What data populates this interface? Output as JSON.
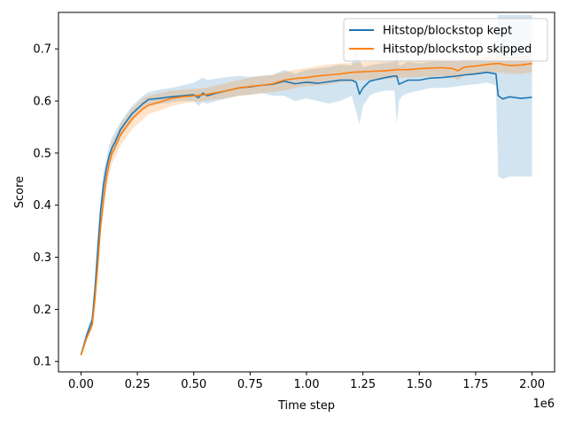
{
  "chart_data": {
    "type": "line",
    "xlabel": "Time step",
    "ylabel": "Score",
    "x_offset_label": "1e6",
    "x_tick_labels": [
      "0.00",
      "0.25",
      "0.50",
      "0.75",
      "1.00",
      "1.25",
      "1.50",
      "1.75",
      "2.00"
    ],
    "x_ticks": [
      0,
      250000,
      500000,
      750000,
      1000000,
      1250000,
      1500000,
      1750000,
      2000000
    ],
    "y_tick_labels": [
      "0.1",
      "0.2",
      "0.3",
      "0.4",
      "0.5",
      "0.6",
      "0.7"
    ],
    "y_ticks": [
      0.1,
      0.2,
      0.3,
      0.4,
      0.5,
      0.6,
      0.7
    ],
    "xlim": [
      -100000,
      2100000
    ],
    "ylim": [
      0.08,
      0.77
    ],
    "grid": false,
    "legend_position": "top-right",
    "series": [
      {
        "name": "Hitstop/blockstop kept",
        "color": "#1f77b4",
        "band_color": "#1f77b4",
        "x": [
          0,
          25000,
          50000,
          62000,
          75000,
          87000,
          100000,
          112000,
          125000,
          137000,
          150000,
          175000,
          200000,
          225000,
          250000,
          275000,
          300000,
          350000,
          400000,
          450000,
          500000,
          520000,
          540000,
          560000,
          600000,
          650000,
          700000,
          750000,
          800000,
          850000,
          900000,
          950000,
          1000000,
          1050000,
          1100000,
          1150000,
          1200000,
          1220000,
          1235000,
          1250000,
          1280000,
          1300000,
          1350000,
          1390000,
          1400000,
          1410000,
          1425000,
          1450000,
          1500000,
          1550000,
          1600000,
          1650000,
          1700000,
          1750000,
          1800000,
          1840000,
          1850000,
          1870000,
          1900000,
          1950000,
          2000000
        ],
        "y": [
          0.113,
          0.15,
          0.18,
          0.24,
          0.32,
          0.39,
          0.44,
          0.47,
          0.495,
          0.51,
          0.52,
          0.545,
          0.56,
          0.575,
          0.585,
          0.595,
          0.603,
          0.605,
          0.608,
          0.61,
          0.612,
          0.606,
          0.615,
          0.61,
          0.615,
          0.62,
          0.625,
          0.627,
          0.63,
          0.632,
          0.638,
          0.633,
          0.636,
          0.634,
          0.637,
          0.64,
          0.64,
          0.636,
          0.613,
          0.625,
          0.638,
          0.64,
          0.645,
          0.648,
          0.648,
          0.632,
          0.635,
          0.64,
          0.64,
          0.644,
          0.645,
          0.647,
          0.65,
          0.652,
          0.655,
          0.652,
          0.61,
          0.604,
          0.608,
          0.605,
          0.607
        ],
        "lower": [
          0.11,
          0.145,
          0.175,
          0.225,
          0.3,
          0.37,
          0.42,
          0.45,
          0.475,
          0.49,
          0.505,
          0.53,
          0.545,
          0.56,
          0.575,
          0.583,
          0.59,
          0.595,
          0.598,
          0.6,
          0.6,
          0.59,
          0.598,
          0.595,
          0.6,
          0.605,
          0.61,
          0.612,
          0.615,
          0.61,
          0.61,
          0.6,
          0.605,
          0.6,
          0.595,
          0.6,
          0.61,
          0.58,
          0.555,
          0.59,
          0.61,
          0.615,
          0.62,
          0.62,
          0.555,
          0.6,
          0.61,
          0.615,
          0.62,
          0.625,
          0.625,
          0.627,
          0.63,
          0.632,
          0.635,
          0.63,
          0.455,
          0.45,
          0.455,
          0.455,
          0.455
        ],
        "upper": [
          0.118,
          0.158,
          0.19,
          0.255,
          0.345,
          0.41,
          0.465,
          0.49,
          0.515,
          0.53,
          0.54,
          0.56,
          0.575,
          0.59,
          0.6,
          0.61,
          0.617,
          0.622,
          0.625,
          0.63,
          0.635,
          0.64,
          0.645,
          0.64,
          0.643,
          0.646,
          0.648,
          0.646,
          0.648,
          0.65,
          0.66,
          0.652,
          0.66,
          0.662,
          0.665,
          0.67,
          0.668,
          0.705,
          0.68,
          0.665,
          0.668,
          0.67,
          0.673,
          0.675,
          0.71,
          0.668,
          0.67,
          0.675,
          0.672,
          0.675,
          0.676,
          0.678,
          0.68,
          0.68,
          0.685,
          0.68,
          0.765,
          0.765,
          0.765,
          0.765,
          0.765
        ]
      },
      {
        "name": "Hitstop/blockstop skipped",
        "color": "#ff7f0e",
        "band_color": "#ff7f0e",
        "x": [
          0,
          25000,
          50000,
          62000,
          75000,
          87000,
          100000,
          112000,
          125000,
          137000,
          150000,
          175000,
          200000,
          225000,
          250000,
          275000,
          300000,
          350000,
          400000,
          450000,
          500000,
          550000,
          600000,
          650000,
          700000,
          750000,
          800000,
          850000,
          900000,
          950000,
          1000000,
          1050000,
          1100000,
          1150000,
          1200000,
          1250000,
          1300000,
          1350000,
          1400000,
          1450000,
          1500000,
          1550000,
          1600000,
          1650000,
          1670000,
          1700000,
          1750000,
          1800000,
          1850000,
          1900000,
          1950000,
          2000000
        ],
        "y": [
          0.112,
          0.145,
          0.17,
          0.22,
          0.29,
          0.36,
          0.41,
          0.45,
          0.48,
          0.5,
          0.51,
          0.535,
          0.55,
          0.565,
          0.575,
          0.585,
          0.592,
          0.598,
          0.605,
          0.608,
          0.61,
          0.612,
          0.616,
          0.62,
          0.625,
          0.628,
          0.63,
          0.633,
          0.64,
          0.643,
          0.645,
          0.648,
          0.65,
          0.652,
          0.655,
          0.656,
          0.657,
          0.658,
          0.66,
          0.66,
          0.662,
          0.663,
          0.664,
          0.662,
          0.658,
          0.665,
          0.667,
          0.67,
          0.672,
          0.668,
          0.669,
          0.672
        ],
        "lower": [
          0.11,
          0.14,
          0.165,
          0.205,
          0.27,
          0.34,
          0.39,
          0.43,
          0.46,
          0.48,
          0.49,
          0.515,
          0.53,
          0.545,
          0.555,
          0.565,
          0.575,
          0.582,
          0.59,
          0.595,
          0.598,
          0.6,
          0.603,
          0.606,
          0.61,
          0.612,
          0.615,
          0.617,
          0.62,
          0.625,
          0.628,
          0.63,
          0.632,
          0.635,
          0.638,
          0.64,
          0.64,
          0.642,
          0.644,
          0.645,
          0.646,
          0.647,
          0.648,
          0.645,
          0.64,
          0.648,
          0.65,
          0.654,
          0.655,
          0.652,
          0.652,
          0.655
        ],
        "upper": [
          0.115,
          0.15,
          0.178,
          0.235,
          0.31,
          0.38,
          0.43,
          0.47,
          0.5,
          0.52,
          0.53,
          0.555,
          0.57,
          0.585,
          0.595,
          0.605,
          0.61,
          0.615,
          0.62,
          0.622,
          0.623,
          0.625,
          0.63,
          0.635,
          0.64,
          0.645,
          0.648,
          0.65,
          0.655,
          0.66,
          0.663,
          0.667,
          0.67,
          0.672,
          0.673,
          0.674,
          0.675,
          0.676,
          0.678,
          0.678,
          0.68,
          0.681,
          0.682,
          0.682,
          0.676,
          0.684,
          0.685,
          0.688,
          0.69,
          0.685,
          0.686,
          0.688
        ]
      }
    ]
  }
}
